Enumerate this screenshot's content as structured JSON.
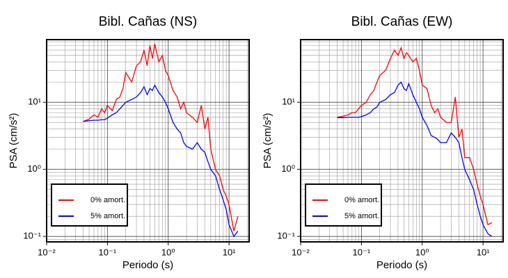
{
  "chart_data": [
    {
      "type": "line",
      "title": "Bibl. Cañas (NS)",
      "x_label": "Periodo (s)",
      "y_label": "PSA (cm/s²)",
      "x_scale": "log",
      "y_scale": "log",
      "grid": true,
      "minor_grid": true,
      "legend": "lower left",
      "xlim": [
        0.01,
        21.4
      ],
      "ylim": [
        0.083,
        86
      ],
      "xticks": [
        {
          "value": 0.01,
          "label": "10⁻²"
        },
        {
          "value": 0.1,
          "label": "10⁻¹"
        },
        {
          "value": 1,
          "label": "10⁰"
        },
        {
          "value": 10,
          "label": "10¹"
        }
      ],
      "yticks": [
        {
          "value": 0.1,
          "label": "10⁻¹"
        },
        {
          "value": 1,
          "label": "10⁰"
        },
        {
          "value": 10,
          "label": "10¹"
        }
      ],
      "x": [
        0.04,
        0.05,
        0.06,
        0.07,
        0.08,
        0.09,
        0.1,
        0.12,
        0.14,
        0.16,
        0.18,
        0.2,
        0.25,
        0.3,
        0.35,
        0.4,
        0.45,
        0.5,
        0.55,
        0.6,
        0.7,
        0.8,
        0.9,
        1.0,
        1.2,
        1.4,
        1.6,
        1.8,
        2.0,
        2.5,
        3.0,
        3.5,
        4.0,
        4.5,
        5.0,
        6,
        7,
        8,
        9,
        10,
        12,
        14
      ],
      "series": [
        {
          "name": "0% amort.",
          "color": "#ff0000",
          "values": [
            5.2,
            5.6,
            6.5,
            6,
            8,
            7,
            9,
            7.5,
            11,
            12,
            16,
            28,
            20,
            35,
            40,
            60,
            35,
            70,
            45,
            75,
            40,
            50,
            30,
            25,
            15,
            12,
            8,
            10,
            7,
            6,
            5,
            9,
            4,
            6,
            2,
            1,
            0.8,
            0.5,
            0.4,
            0.3,
            0.12,
            0.2
          ]
        },
        {
          "name": "5% amort.",
          "color": "#0000ff",
          "values": [
            5.2,
            5.3,
            5.4,
            5.4,
            5.5,
            5.5,
            5.8,
            6.5,
            7,
            8,
            9,
            10,
            11,
            12,
            14,
            17,
            13,
            16,
            15,
            18,
            14,
            12,
            10,
            8,
            5,
            4,
            3.5,
            2.5,
            2.2,
            2,
            2.5,
            2,
            1.8,
            1.3,
            1,
            0.8,
            0.5,
            0.35,
            0.25,
            0.15,
            0.1,
            0.12
          ]
        }
      ]
    },
    {
      "type": "line",
      "title": "Bibl. Cañas (EW)",
      "x_label": "Periodo (s)",
      "y_label": "PSA (cm/s²)",
      "x_scale": "log",
      "y_scale": "log",
      "grid": true,
      "minor_grid": true,
      "legend": "lower left",
      "xlim": [
        0.01,
        21.4
      ],
      "ylim": [
        0.083,
        86
      ],
      "xticks": [
        {
          "value": 0.01,
          "label": "10⁻²"
        },
        {
          "value": 0.1,
          "label": "10⁻¹"
        },
        {
          "value": 1,
          "label": "10⁰"
        },
        {
          "value": 10,
          "label": "10¹"
        }
      ],
      "yticks": [
        {
          "value": 0.1,
          "label": "10⁻¹"
        },
        {
          "value": 1,
          "label": "10⁰"
        },
        {
          "value": 10,
          "label": "10¹"
        }
      ],
      "x": [
        0.04,
        0.05,
        0.06,
        0.07,
        0.08,
        0.09,
        0.1,
        0.12,
        0.14,
        0.16,
        0.18,
        0.2,
        0.25,
        0.3,
        0.35,
        0.4,
        0.45,
        0.5,
        0.55,
        0.6,
        0.7,
        0.8,
        0.9,
        1.0,
        1.2,
        1.4,
        1.6,
        1.8,
        2.0,
        2.5,
        3.0,
        3.5,
        4.0,
        4.5,
        5.0,
        6,
        7,
        8,
        9,
        10,
        12,
        14
      ],
      "series": [
        {
          "name": "0% amort.",
          "color": "#ff0000",
          "values": [
            6,
            6.2,
            6.5,
            7,
            7,
            8,
            9,
            10,
            13,
            15,
            20,
            25,
            30,
            45,
            60,
            50,
            65,
            45,
            55,
            50,
            40,
            45,
            30,
            18,
            16,
            9,
            7,
            8,
            6,
            5,
            5,
            12,
            3,
            4,
            1.5,
            1.5,
            1.0,
            0.6,
            0.4,
            0.3,
            0.15,
            0.16
          ]
        },
        {
          "name": "5% amort.",
          "color": "#0000ff",
          "values": [
            5.9,
            5.9,
            6,
            6,
            6,
            6,
            6.1,
            6.5,
            7,
            8,
            8.5,
            10,
            11,
            13,
            14,
            18,
            20,
            16,
            15,
            19,
            13,
            10,
            8,
            6,
            4.5,
            3.2,
            3,
            2.8,
            2.5,
            2.5,
            3.5,
            3.0,
            2.5,
            1.5,
            1.0,
            0.7,
            0.5,
            0.3,
            0.2,
            0.15,
            0.11,
            0.1
          ]
        }
      ]
    }
  ]
}
